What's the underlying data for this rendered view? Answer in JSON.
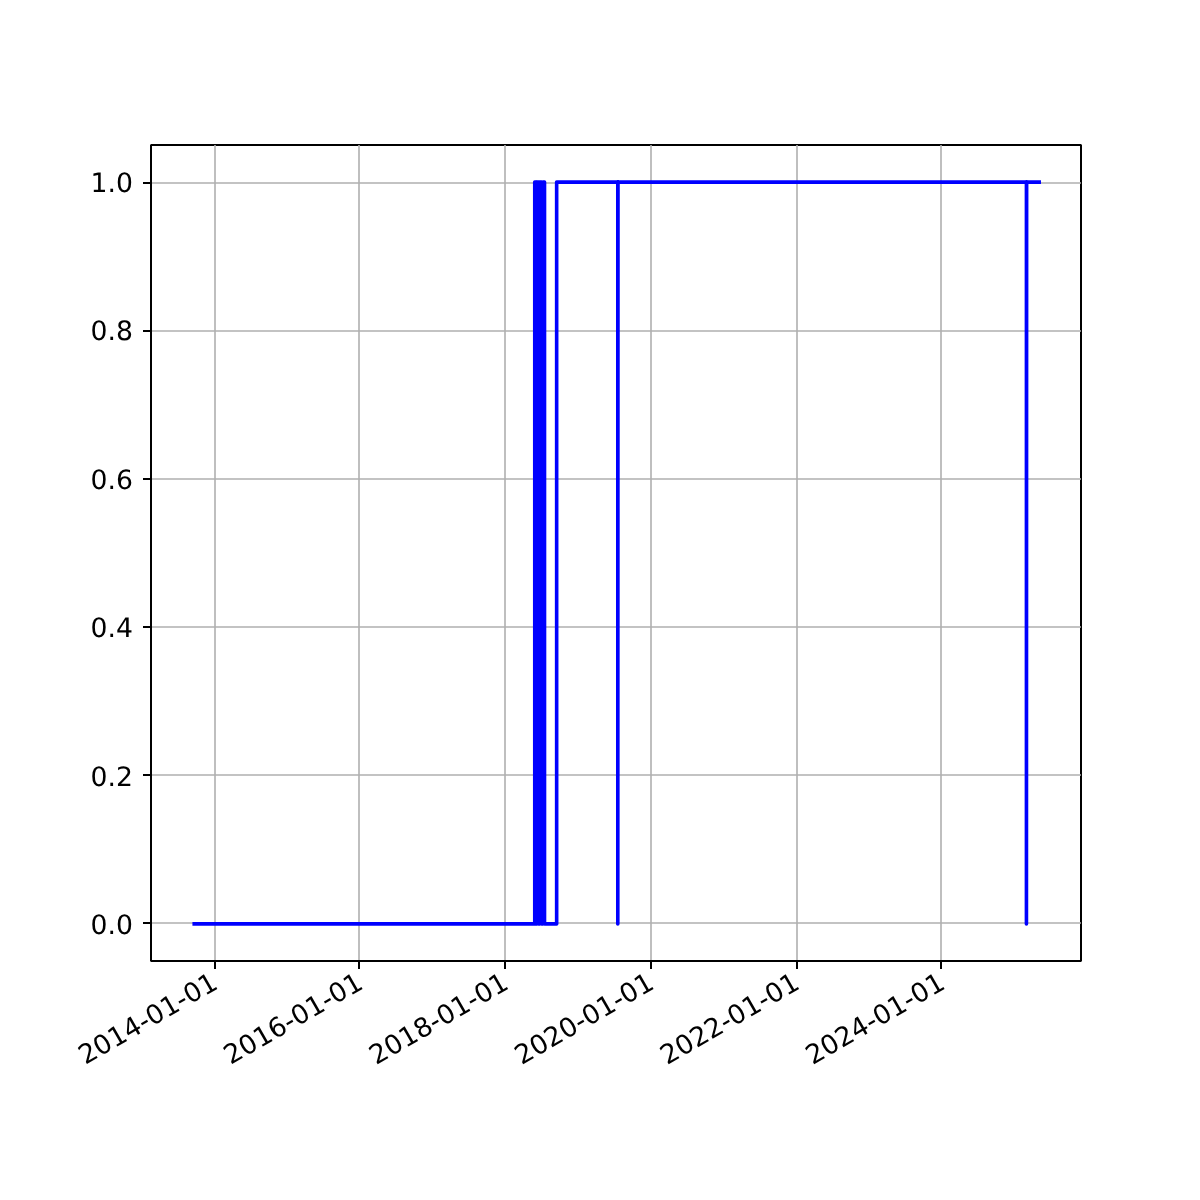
{
  "chart_data": {
    "type": "line",
    "x": [
      "2013-09-13",
      "2018-05-29",
      "2018-05-29",
      "2018-06-04",
      "2018-06-04",
      "2018-06-10",
      "2018-06-10",
      "2018-06-17",
      "2018-06-17",
      "2018-06-24",
      "2018-06-24",
      "2018-07-02",
      "2018-07-02",
      "2018-07-10",
      "2018-07-10",
      "2018-07-17",
      "2018-07-17",
      "2018-07-24",
      "2018-07-24",
      "2018-09-16",
      "2018-09-16",
      "2019-07-20",
      "2019-07-20",
      "2019-07-21",
      "2025-03-02",
      "2025-03-02",
      "2025-03-03",
      "2025-05-14"
    ],
    "series": [
      {
        "color": "#0000ff",
        "values": [
          0,
          0,
          1,
          1,
          0,
          0,
          1,
          1,
          0,
          0,
          1,
          1,
          0,
          0,
          1,
          1,
          0,
          0,
          0,
          0,
          1,
          1,
          0,
          1,
          1,
          0,
          1,
          1
        ]
      }
    ],
    "xlim": [
      "2013-02-17",
      "2025-12-01"
    ],
    "xticks": [
      "2014-01-01",
      "2016-01-01",
      "2018-01-01",
      "2020-01-01",
      "2022-01-01",
      "2024-01-01"
    ],
    "ylim": [
      -0.05,
      1.05
    ],
    "yticks": [
      {
        "value": 0,
        "label": "0.0"
      },
      {
        "value": 0.2,
        "label": "0.2"
      },
      {
        "value": 0.4,
        "label": "0.4"
      },
      {
        "value": 0.6,
        "label": "0.6"
      },
      {
        "value": 0.8,
        "label": "0.8"
      },
      {
        "value": 1,
        "label": "1.0"
      }
    ],
    "grid": true,
    "line_style": "solid",
    "marker": "none"
  }
}
